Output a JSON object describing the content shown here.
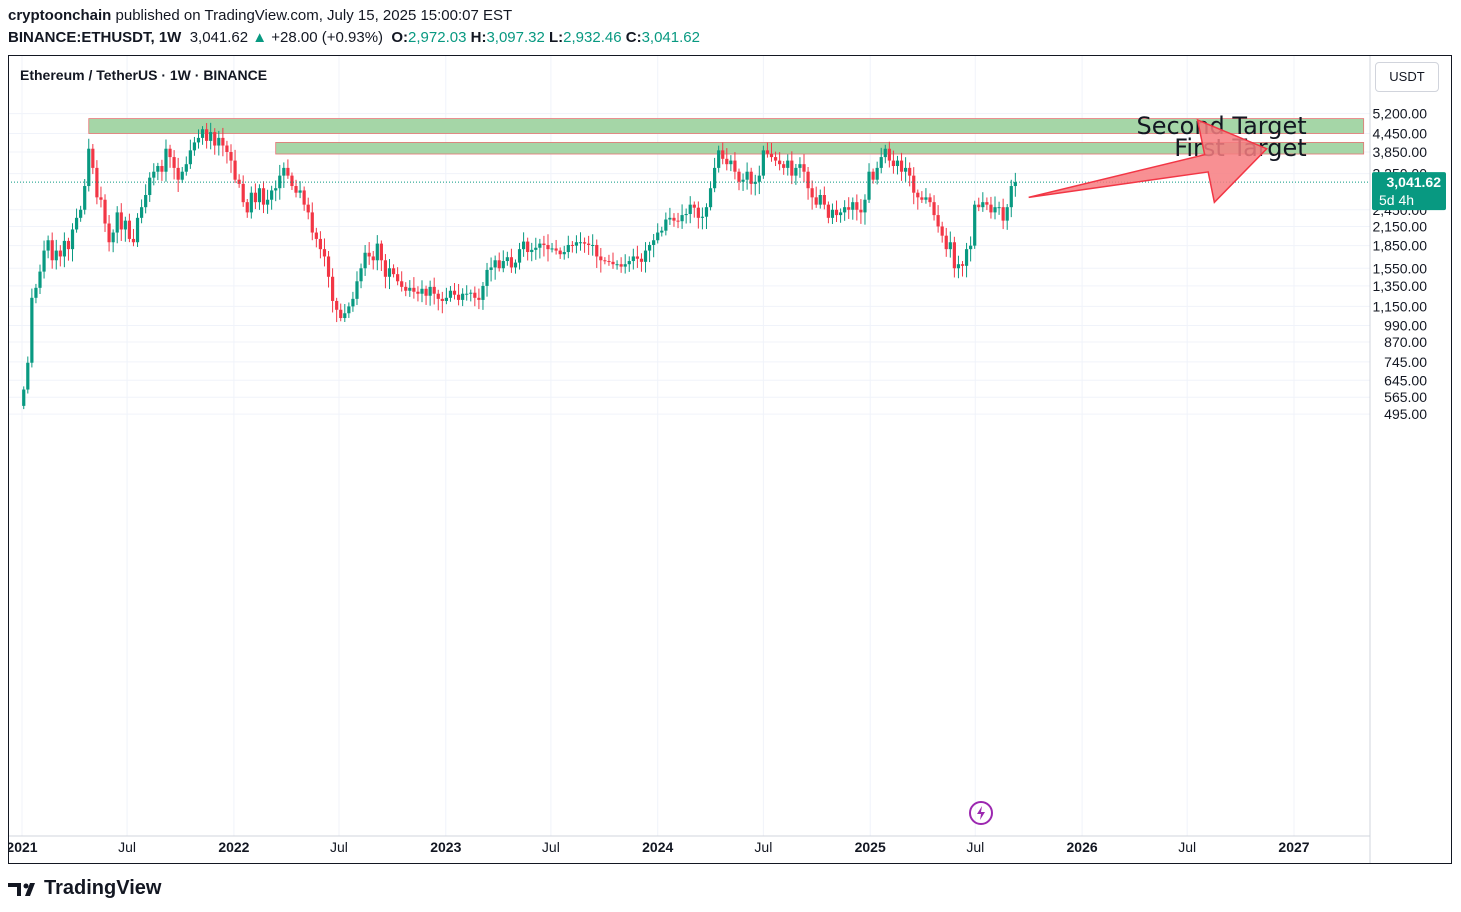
{
  "header": {
    "author": "cryptoonchain",
    "published_text": " published on TradingView.com, July 15, 2025 15:00:07 EST",
    "symbol": "BINANCE:ETHUSDT, 1W",
    "price": "3,041.62",
    "change": "+28.00 (+0.93%)",
    "o_label": "O:",
    "o": "2,972.03",
    "h_label": "H:",
    "h": "3,097.32",
    "l_label": "L:",
    "l": "2,932.46",
    "c_label": "C:",
    "c": "3,041.62"
  },
  "legend": "Ethereum / TetherUS · 1W · BINANCE",
  "currency": "USDT",
  "brand": "TradingView",
  "colors": {
    "up": "#089981",
    "down": "#F23645",
    "zone": "#A5D6A7",
    "arrow": "#F77C80"
  },
  "chart_data": {
    "type": "candlestick",
    "y_scale": "log",
    "ylim": [
      450,
      6000
    ],
    "y_ticks": [
      5200,
      4450,
      3850,
      3250,
      2450,
      2150,
      1850,
      1550,
      1350,
      1150,
      990,
      870,
      745,
      645,
      565,
      495
    ],
    "y_tick_labels": [
      "5,200.00",
      "4,450.00",
      "3,850.00",
      "3,250.00",
      "2,450.00",
      "2,150.00",
      "1,850.00",
      "1,550.00",
      "1,350.00",
      "1,150.00",
      "990.00",
      "870.00",
      "745.00",
      "645.00",
      "565.00",
      "495.00"
    ],
    "x_range": [
      "2020-12-28",
      "2027-06-30"
    ],
    "x_ticks": [
      {
        "date": "2021-01-01",
        "label": "2021",
        "bold": true
      },
      {
        "date": "2021-07-01",
        "label": "Jul",
        "bold": false
      },
      {
        "date": "2022-01-01",
        "label": "2022",
        "bold": true
      },
      {
        "date": "2022-07-01",
        "label": "Jul",
        "bold": false
      },
      {
        "date": "2023-01-01",
        "label": "2023",
        "bold": true
      },
      {
        "date": "2023-07-01",
        "label": "Jul",
        "bold": false
      },
      {
        "date": "2024-01-01",
        "label": "2024",
        "bold": true
      },
      {
        "date": "2024-07-01",
        "label": "Jul",
        "bold": false
      },
      {
        "date": "2025-01-01",
        "label": "2025",
        "bold": true
      },
      {
        "date": "2025-07-01",
        "label": "Jul",
        "bold": false
      },
      {
        "date": "2026-01-01",
        "label": "2026",
        "bold": true
      },
      {
        "date": "2026-07-01",
        "label": "Jul",
        "bold": false
      },
      {
        "date": "2027-01-01",
        "label": "2027",
        "bold": true
      }
    ],
    "closes": [
      [
        0,
        600
      ],
      [
        1,
        740
      ],
      [
        2,
        1230
      ],
      [
        3,
        1330
      ],
      [
        4,
        1510
      ],
      [
        5,
        1780
      ],
      [
        6,
        1930
      ],
      [
        7,
        1650
      ],
      [
        8,
        1780
      ],
      [
        9,
        1700
      ],
      [
        10,
        1920
      ],
      [
        11,
        1800
      ],
      [
        12,
        2100
      ],
      [
        13,
        2300
      ],
      [
        14,
        2450
      ],
      [
        15,
        2950
      ],
      [
        16,
        3950
      ],
      [
        17,
        3400
      ],
      [
        18,
        2700
      ],
      [
        19,
        2650
      ],
      [
        20,
        2200
      ],
      [
        21,
        1900
      ],
      [
        22,
        2050
      ],
      [
        23,
        2400
      ],
      [
        24,
        2100
      ],
      [
        25,
        2250
      ],
      [
        26,
        1950
      ],
      [
        27,
        1900
      ],
      [
        28,
        2300
      ],
      [
        29,
        2500
      ],
      [
        30,
        2750
      ],
      [
        31,
        3150
      ],
      [
        32,
        3300
      ],
      [
        33,
        3450
      ],
      [
        34,
        3300
      ],
      [
        35,
        3950
      ],
      [
        36,
        3700
      ],
      [
        37,
        3400
      ],
      [
        38,
        3100
      ],
      [
        39,
        3300
      ],
      [
        40,
        3500
      ],
      [
        41,
        3900
      ],
      [
        42,
        4150
      ],
      [
        43,
        4300
      ],
      [
        44,
        4600
      ],
      [
        45,
        4200
      ],
      [
        46,
        4500
      ],
      [
        47,
        4050
      ],
      [
        48,
        4300
      ],
      [
        49,
        4050
      ],
      [
        50,
        3850
      ],
      [
        51,
        3600
      ],
      [
        52,
        3100
      ],
      [
        53,
        3000
      ],
      [
        54,
        2600
      ],
      [
        55,
        2400
      ],
      [
        56,
        2800
      ],
      [
        57,
        2600
      ],
      [
        58,
        2900
      ],
      [
        59,
        2550
      ],
      [
        60,
        2650
      ],
      [
        61,
        2850
      ],
      [
        62,
        2900
      ],
      [
        63,
        3200
      ],
      [
        64,
        3400
      ],
      [
        65,
        3200
      ],
      [
        66,
        2950
      ],
      [
        67,
        2800
      ],
      [
        68,
        2850
      ],
      [
        69,
        2550
      ],
      [
        70,
        2400
      ],
      [
        71,
        2050
      ],
      [
        72,
        1950
      ],
      [
        73,
        1800
      ],
      [
        74,
        1700
      ],
      [
        75,
        1450
      ],
      [
        76,
        1200
      ],
      [
        77,
        1120
      ],
      [
        78,
        1050
      ],
      [
        79,
        1090
      ],
      [
        80,
        1150
      ],
      [
        81,
        1220
      ],
      [
        82,
        1400
      ],
      [
        83,
        1550
      ],
      [
        84,
        1750
      ],
      [
        85,
        1700
      ],
      [
        86,
        1650
      ],
      [
        87,
        1880
      ],
      [
        88,
        1650
      ],
      [
        89,
        1450
      ],
      [
        90,
        1550
      ],
      [
        91,
        1480
      ],
      [
        92,
        1400
      ],
      [
        93,
        1340
      ],
      [
        94,
        1300
      ],
      [
        95,
        1330
      ],
      [
        96,
        1290
      ],
      [
        97,
        1270
      ],
      [
        98,
        1320
      ],
      [
        99,
        1250
      ],
      [
        100,
        1340
      ],
      [
        101,
        1270
      ],
      [
        102,
        1220
      ],
      [
        103,
        1200
      ],
      [
        104,
        1230
      ],
      [
        105,
        1300
      ],
      [
        106,
        1260
      ],
      [
        107,
        1210
      ],
      [
        108,
        1270
      ],
      [
        109,
        1270
      ],
      [
        110,
        1280
      ],
      [
        111,
        1230
      ],
      [
        112,
        1210
      ],
      [
        113,
        1350
      ],
      [
        114,
        1530
      ],
      [
        115,
        1560
      ],
      [
        116,
        1650
      ],
      [
        117,
        1550
      ],
      [
        118,
        1640
      ],
      [
        119,
        1690
      ],
      [
        120,
        1560
      ],
      [
        121,
        1620
      ],
      [
        122,
        1800
      ],
      [
        123,
        1910
      ],
      [
        124,
        1760
      ],
      [
        125,
        1790
      ],
      [
        126,
        1820
      ],
      [
        127,
        1880
      ],
      [
        128,
        1860
      ],
      [
        129,
        1800
      ],
      [
        130,
        1810
      ],
      [
        131,
        1780
      ],
      [
        132,
        1730
      ],
      [
        133,
        1760
      ],
      [
        134,
        1860
      ],
      [
        135,
        1850
      ],
      [
        136,
        1900
      ],
      [
        137,
        1900
      ],
      [
        138,
        1880
      ],
      [
        139,
        1860
      ],
      [
        140,
        1860
      ],
      [
        141,
        1700
      ],
      [
        142,
        1650
      ],
      [
        143,
        1640
      ],
      [
        144,
        1630
      ],
      [
        145,
        1600
      ],
      [
        146,
        1600
      ],
      [
        147,
        1570
      ],
      [
        148,
        1600
      ],
      [
        149,
        1640
      ],
      [
        150,
        1700
      ],
      [
        151,
        1670
      ],
      [
        152,
        1630
      ],
      [
        153,
        1780
      ],
      [
        154,
        1860
      ],
      [
        155,
        1930
      ],
      [
        156,
        2050
      ],
      [
        157,
        2080
      ],
      [
        158,
        2270
      ],
      [
        159,
        2300
      ],
      [
        160,
        2250
      ],
      [
        161,
        2240
      ],
      [
        162,
        2350
      ],
      [
        163,
        2370
      ],
      [
        164,
        2550
      ],
      [
        165,
        2490
      ],
      [
        166,
        2300
      ],
      [
        167,
        2320
      ],
      [
        168,
        2500
      ],
      [
        169,
        2900
      ],
      [
        170,
        3400
      ],
      [
        171,
        3900
      ],
      [
        172,
        3650
      ],
      [
        173,
        3500
      ],
      [
        174,
        3600
      ],
      [
        175,
        3300
      ],
      [
        176,
        3050
      ],
      [
        177,
        3100
      ],
      [
        178,
        3300
      ],
      [
        179,
        3000
      ],
      [
        180,
        3050
      ],
      [
        181,
        3200
      ],
      [
        182,
        3900
      ],
      [
        183,
        3800
      ],
      [
        184,
        3700
      ],
      [
        185,
        3600
      ],
      [
        186,
        3500
      ],
      [
        187,
        3400
      ],
      [
        188,
        3600
      ],
      [
        189,
        3200
      ],
      [
        190,
        3400
      ],
      [
        191,
        3500
      ],
      [
        192,
        3300
      ],
      [
        193,
        2900
      ],
      [
        194,
        2700
      ],
      [
        195,
        2550
      ],
      [
        196,
        2750
      ],
      [
        197,
        2550
      ],
      [
        198,
        2300
      ],
      [
        199,
        2450
      ],
      [
        200,
        2350
      ],
      [
        201,
        2400
      ],
      [
        202,
        2500
      ],
      [
        203,
        2450
      ],
      [
        204,
        2600
      ],
      [
        205,
        2450
      ],
      [
        206,
        2400
      ],
      [
        207,
        2650
      ],
      [
        208,
        3300
      ],
      [
        209,
        3100
      ],
      [
        210,
        3400
      ],
      [
        211,
        3700
      ],
      [
        212,
        3950
      ],
      [
        213,
        3600
      ],
      [
        214,
        3450
      ],
      [
        215,
        3600
      ],
      [
        216,
        3300
      ],
      [
        217,
        3400
      ],
      [
        218,
        3200
      ],
      [
        219,
        2800
      ],
      [
        220,
        2700
      ],
      [
        221,
        2650
      ],
      [
        222,
        2700
      ],
      [
        223,
        2600
      ],
      [
        224,
        2350
      ],
      [
        225,
        2150
      ],
      [
        226,
        2000
      ],
      [
        227,
        1800
      ],
      [
        228,
        1900
      ],
      [
        229,
        1550
      ],
      [
        230,
        1600
      ],
      [
        231,
        1580
      ],
      [
        232,
        1800
      ],
      [
        233,
        1850
      ],
      [
        234,
        2550
      ],
      [
        235,
        2500
      ],
      [
        236,
        2600
      ],
      [
        237,
        2550
      ],
      [
        238,
        2400
      ],
      [
        239,
        2500
      ],
      [
        240,
        2500
      ],
      [
        241,
        2250
      ],
      [
        242,
        2500
      ],
      [
        243,
        2950
      ],
      [
        244,
        3041.62
      ]
    ],
    "zones": [
      {
        "label": "Second Target",
        "low": 4450,
        "high": 5000,
        "start_date": "2021-04-26",
        "end_date": "2027-05-01"
      },
      {
        "label": "First Target",
        "low": 3790,
        "high": 4150,
        "start_date": "2022-03-14",
        "end_date": "2027-05-01"
      }
    ],
    "arrow": {
      "from_date": "2025-10-01",
      "from_price": 2700,
      "to_date": "2026-11-15",
      "to_price": 3950
    },
    "current_price": 3041.62,
    "current_price_label": "3,041.62",
    "countdown_label": "5d 4h"
  }
}
